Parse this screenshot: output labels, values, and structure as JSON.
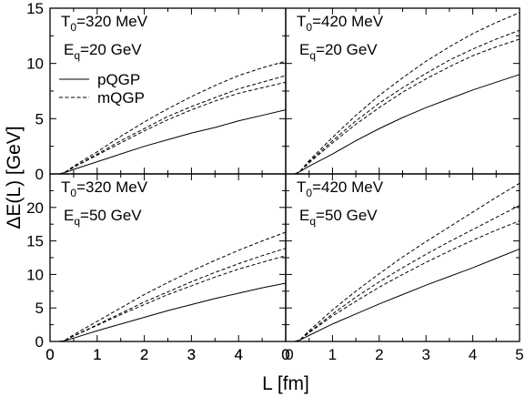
{
  "chart_data": {
    "type": "line",
    "xlabel": "L [fm]",
    "ylabel": "ΔE(L) [GeV]",
    "legend": {
      "placement": "top-left panel, below annotations",
      "entries": [
        {
          "label": "pQGP",
          "style": "solid"
        },
        {
          "label": "mQGP",
          "style": "dashed"
        }
      ]
    },
    "grid": false,
    "panels": [
      {
        "position": "top-left",
        "annotation": {
          "t_prefix": "T",
          "t_sub": "0",
          "t_value": "=320 MeV",
          "e_prefix": "E",
          "e_sub": "q",
          "e_value": "=20 GeV"
        },
        "xlim": [
          0,
          5
        ],
        "ylim": [
          0,
          15
        ],
        "xticks": [
          "0",
          "1",
          "2",
          "3",
          "4",
          "0"
        ],
        "yticks": [
          "0",
          "5",
          "10",
          "15"
        ],
        "x": [
          0.2,
          0.3,
          0.5,
          1,
          1.5,
          2,
          2.5,
          3,
          3.5,
          4,
          4.5,
          5
        ],
        "series": [
          {
            "name": "pQGP",
            "style": "solid",
            "values": [
              0,
              0.1,
              0.4,
              1.1,
              1.8,
              2.5,
              3.1,
              3.7,
              4.2,
              4.8,
              5.3,
              5.8
            ]
          },
          {
            "name": "mQGP",
            "style": "dashed",
            "values": [
              0,
              0.1,
              0.6,
              1.7,
              2.8,
              3.9,
              4.9,
              5.8,
              6.6,
              7.3,
              7.8,
              8.3
            ]
          },
          {
            "name": "mQGP",
            "style": "dashed",
            "values": [
              0,
              0.1,
              0.6,
              1.8,
              3.0,
              4.1,
              5.2,
              6.1,
              6.9,
              7.7,
              8.3,
              8.9
            ]
          },
          {
            "name": "mQGP",
            "style": "dashed",
            "values": [
              0,
              0.1,
              0.7,
              2.0,
              3.4,
              4.7,
              5.9,
              7.0,
              8.0,
              8.9,
              9.6,
              10.2
            ]
          }
        ]
      },
      {
        "position": "top-right",
        "annotation": {
          "t_prefix": "T",
          "t_sub": "0",
          "t_value": "=420 MeV",
          "e_prefix": "E",
          "e_sub": "q",
          "e_value": "=20 GeV"
        },
        "xlim": [
          0,
          5
        ],
        "ylim": [
          0,
          15
        ],
        "xticks": [],
        "yticks": [],
        "x": [
          0.2,
          0.3,
          0.5,
          1,
          1.5,
          2,
          2.5,
          3,
          3.5,
          4,
          4.5,
          5
        ],
        "series": [
          {
            "name": "pQGP",
            "style": "solid",
            "values": [
              0,
              0.2,
              0.7,
              1.8,
              3.0,
              4.1,
              5.1,
              6.0,
              6.8,
              7.6,
              8.3,
              9.0
            ]
          },
          {
            "name": "mQGP",
            "style": "dashed",
            "values": [
              0,
              0.2,
              1.0,
              2.8,
              4.5,
              6.0,
              7.4,
              8.6,
              9.7,
              10.7,
              11.5,
              12.2
            ]
          },
          {
            "name": "mQGP",
            "style": "dashed",
            "values": [
              0,
              0.2,
              1.1,
              3.0,
              4.8,
              6.4,
              7.8,
              9.1,
              10.3,
              11.3,
              12.2,
              13.0
            ]
          },
          {
            "name": "mQGP",
            "style": "dashed",
            "values": [
              0,
              0.2,
              1.2,
              3.3,
              5.3,
              7.1,
              8.7,
              10.2,
              11.5,
              12.7,
              13.7,
              14.6
            ]
          }
        ]
      },
      {
        "position": "bottom-left",
        "annotation": {
          "t_prefix": "T",
          "t_sub": "0",
          "t_value": "=320 MeV",
          "e_prefix": "E",
          "e_sub": "q",
          "e_value": "=50 GeV"
        },
        "xlim": [
          0,
          5
        ],
        "ylim": [
          0,
          25
        ],
        "xticks": [
          "0",
          "1",
          "2",
          "3",
          "4",
          "0"
        ],
        "yticks": [
          "0",
          "5",
          "10",
          "15",
          "20"
        ],
        "x": [
          0.2,
          0.3,
          0.5,
          1,
          1.5,
          2,
          2.5,
          3,
          3.5,
          4,
          4.5,
          5
        ],
        "series": [
          {
            "name": "pQGP",
            "style": "solid",
            "values": [
              0,
              0.1,
              0.5,
              1.6,
              2.6,
              3.6,
              4.6,
              5.5,
              6.4,
              7.2,
              8.0,
              8.7
            ]
          },
          {
            "name": "mQGP",
            "style": "dashed",
            "values": [
              0,
              0.1,
              0.8,
              2.4,
              4.0,
              5.5,
              7.0,
              8.3,
              9.6,
              10.8,
              11.8,
              12.8
            ]
          },
          {
            "name": "mQGP",
            "style": "dashed",
            "values": [
              0,
              0.1,
              0.8,
              2.5,
              4.2,
              5.9,
              7.4,
              8.9,
              10.3,
              11.6,
              12.8,
              13.9
            ]
          },
          {
            "name": "mQGP",
            "style": "dashed",
            "values": [
              0,
              0.1,
              1.0,
              3.0,
              5.0,
              7.0,
              8.8,
              10.5,
              12.1,
              13.6,
              15.0,
              16.3
            ]
          }
        ]
      },
      {
        "position": "bottom-right",
        "annotation": {
          "t_prefix": "T",
          "t_sub": "0",
          "t_value": "=420 MeV",
          "e_prefix": "E",
          "e_sub": "q",
          "e_value": "=50 GeV"
        },
        "xlim": [
          0,
          5
        ],
        "ylim": [
          0,
          25
        ],
        "xticks": [
          "0",
          "1",
          "2",
          "3",
          "4",
          "5"
        ],
        "yticks": [],
        "x": [
          0.2,
          0.3,
          0.5,
          1,
          1.5,
          2,
          2.5,
          3,
          3.5,
          4,
          4.5,
          5
        ],
        "series": [
          {
            "name": "pQGP",
            "style": "solid",
            "values": [
              0,
              0.2,
              0.9,
              2.6,
              4.1,
              5.6,
              7.0,
              8.4,
              9.7,
              11.0,
              12.4,
              13.8
            ]
          },
          {
            "name": "mQGP",
            "style": "dashed",
            "values": [
              0,
              0.2,
              1.3,
              3.8,
              6.0,
              8.1,
              10.0,
              11.8,
              13.5,
              15.1,
              16.6,
              18.0
            ]
          },
          {
            "name": "mQGP",
            "style": "dashed",
            "values": [
              0,
              0.2,
              1.4,
              4.1,
              6.6,
              8.9,
              11.0,
              13.0,
              14.9,
              16.7,
              18.5,
              20.3
            ]
          },
          {
            "name": "mQGP",
            "style": "dashed",
            "values": [
              0,
              0.2,
              1.6,
              4.7,
              7.5,
              10.1,
              12.6,
              14.9,
              17.1,
              19.3,
              21.5,
              23.6
            ]
          }
        ]
      }
    ]
  }
}
